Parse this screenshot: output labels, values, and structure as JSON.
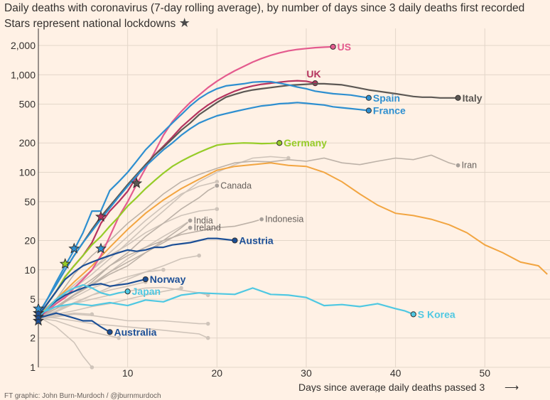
{
  "chart_data": {
    "type": "line",
    "title": "Daily deaths with coronavirus (7-day rolling average), by number of days since 3 daily deaths first recorded",
    "subtitle": "Stars represent national lockdowns",
    "star_glyph": "★",
    "xlabel": "Days since average daily deaths passed 3",
    "x_arrow": "⟶",
    "yscale": "log",
    "ylim": [
      1,
      2600
    ],
    "xlim": [
      0,
      57
    ],
    "yticks": [
      1,
      2,
      5,
      10,
      20,
      50,
      100,
      200,
      500,
      1000,
      2000
    ],
    "ytick_labels": [
      "1",
      "2",
      "5",
      "10",
      "20",
      "50",
      "100",
      "200",
      "500",
      "1,000",
      "2,000"
    ],
    "xticks": [
      10,
      20,
      30,
      40,
      50
    ],
    "xtick_labels": [
      "10",
      "20",
      "30",
      "40",
      "50"
    ],
    "footer": "FT graphic: John Burn-Murdoch / @jburnmurdoch",
    "highlighted": [
      {
        "name": "US",
        "color": "#e45b8e",
        "label_side": "right",
        "x": [
          0,
          1,
          2,
          3,
          4,
          5,
          6,
          7,
          8,
          9,
          10,
          11,
          12,
          13,
          14,
          15,
          16,
          17,
          18,
          19,
          20,
          21,
          22,
          23,
          24,
          25,
          26,
          27,
          28,
          29,
          30,
          31,
          32,
          33
        ],
        "y": [
          3.2,
          3.8,
          4.5,
          5.2,
          6.5,
          8,
          10,
          14,
          22,
          35,
          50,
          75,
          110,
          160,
          240,
          330,
          420,
          520,
          620,
          740,
          860,
          980,
          1100,
          1220,
          1350,
          1470,
          1580,
          1680,
          1760,
          1820,
          1860,
          1900,
          1920,
          1940
        ]
      },
      {
        "name": "UK",
        "color": "#b5345f",
        "label_side": "above",
        "x": [
          0,
          1,
          2,
          3,
          4,
          5,
          6,
          7,
          8,
          9,
          10,
          11,
          12,
          13,
          14,
          15,
          16,
          17,
          18,
          19,
          20,
          21,
          22,
          23,
          24,
          25,
          26,
          27,
          28,
          29,
          30,
          31
        ],
        "y": [
          3.3,
          4.5,
          6,
          8.5,
          11,
          14,
          19,
          30,
          40,
          50,
          64,
          90,
          120,
          150,
          185,
          230,
          290,
          350,
          420,
          490,
          560,
          620,
          680,
          730,
          770,
          800,
          820,
          840,
          860,
          870,
          860,
          820
        ]
      },
      {
        "name": "Italy",
        "color": "#5c5854",
        "label_side": "right",
        "x": [
          0,
          1,
          2,
          3,
          4,
          5,
          6,
          7,
          8,
          9,
          10,
          11,
          12,
          13,
          14,
          15,
          16,
          17,
          18,
          19,
          20,
          21,
          22,
          23,
          24,
          25,
          26,
          27,
          28,
          29,
          30,
          31,
          32,
          33,
          34,
          35,
          36,
          37,
          38,
          39,
          40,
          41,
          42,
          43,
          44,
          45,
          46,
          47
        ],
        "y": [
          3.5,
          5,
          7,
          10,
          14,
          19,
          26,
          35,
          45,
          58,
          75,
          95,
          120,
          150,
          180,
          220,
          270,
          320,
          390,
          450,
          520,
          590,
          630,
          670,
          700,
          720,
          740,
          760,
          780,
          790,
          800,
          810,
          810,
          800,
          790,
          760,
          730,
          700,
          680,
          660,
          640,
          620,
          600,
          590,
          590,
          580,
          580,
          580
        ]
      },
      {
        "name": "Spain",
        "color": "#2e8fd0",
        "label_side": "right",
        "x": [
          0,
          1,
          2,
          3,
          4,
          5,
          6,
          7,
          8,
          9,
          10,
          11,
          12,
          13,
          14,
          15,
          16,
          17,
          18,
          19,
          20,
          21,
          22,
          23,
          24,
          25,
          26,
          27,
          28,
          29,
          30,
          31,
          32,
          33,
          34,
          35,
          36,
          37
        ],
        "y": [
          3.5,
          5,
          7.5,
          11,
          16,
          24,
          40,
          40,
          65,
          80,
          100,
          130,
          170,
          210,
          260,
          320,
          390,
          480,
          570,
          650,
          720,
          770,
          790,
          810,
          840,
          850,
          850,
          820,
          790,
          750,
          720,
          680,
          660,
          640,
          630,
          620,
          600,
          580
        ]
      },
      {
        "name": "France",
        "color": "#2e8fd0",
        "label_side": "right",
        "x": [
          0,
          1,
          2,
          3,
          4,
          5,
          6,
          7,
          8,
          9,
          10,
          11,
          12,
          13,
          14,
          15,
          16,
          17,
          18,
          19,
          20,
          21,
          22,
          23,
          24,
          25,
          26,
          27,
          28,
          29,
          30,
          31,
          32,
          33,
          34,
          35,
          36,
          37
        ],
        "y": [
          3.5,
          5,
          7,
          10,
          14,
          19,
          25,
          33,
          43,
          56,
          72,
          92,
          115,
          140,
          170,
          200,
          240,
          280,
          320,
          350,
          380,
          400,
          420,
          440,
          460,
          480,
          490,
          505,
          510,
          520,
          510,
          500,
          490,
          470,
          460,
          450,
          440,
          430
        ]
      },
      {
        "name": "Germany",
        "color": "#96cc28",
        "label_side": "right",
        "x": [
          0,
          1,
          2,
          3,
          4,
          5,
          6,
          7,
          8,
          9,
          10,
          11,
          12,
          13,
          14,
          15,
          16,
          17,
          18,
          19,
          20,
          21,
          22,
          23,
          24,
          25,
          26,
          27
        ],
        "y": [
          3.3,
          4.5,
          6,
          8.5,
          11,
          14,
          18,
          22,
          28,
          35,
          45,
          55,
          68,
          82,
          98,
          115,
          130,
          145,
          160,
          175,
          190,
          195,
          198,
          200,
          199,
          197,
          198,
          200
        ]
      },
      {
        "name": "Austria",
        "color": "#1c4f96",
        "label_side": "right",
        "x": [
          0,
          1,
          2,
          3,
          4,
          5,
          6,
          7,
          8,
          9,
          10,
          11,
          12,
          13,
          14,
          15,
          16,
          17,
          18,
          19,
          20,
          21,
          22
        ],
        "y": [
          3.4,
          4.5,
          6,
          8,
          9.5,
          11,
          12,
          13,
          14,
          15,
          16,
          15.5,
          16,
          17,
          17,
          18,
          18.5,
          19,
          20,
          21,
          21,
          20.5,
          20
        ]
      },
      {
        "name": "Norway",
        "color": "#1c4f96",
        "label_side": "right",
        "x": [
          0,
          1,
          2,
          3,
          4,
          5,
          6,
          7,
          8,
          9,
          10,
          11,
          12
        ],
        "y": [
          3.2,
          4,
          4.8,
          5.5,
          6,
          6.5,
          7,
          7.2,
          6.8,
          7,
          7.2,
          7.6,
          8
        ]
      },
      {
        "name": "Japan",
        "color": "#4fc8e2",
        "label_side": "right",
        "x": [
          0,
          1,
          2,
          3,
          4,
          5,
          6,
          7,
          8,
          9,
          10
        ],
        "y": [
          3.3,
          4,
          5,
          5.8,
          6.5,
          7,
          6.5,
          5.8,
          5.5,
          5.8,
          6
        ]
      },
      {
        "name": "Australia",
        "color": "#1c4f96",
        "label_side": "right",
        "x": [
          0,
          1,
          2,
          3,
          4,
          5,
          6,
          7,
          8
        ],
        "y": [
          3.2,
          3.4,
          3.6,
          3.4,
          3.2,
          3,
          3,
          2.6,
          2.3
        ]
      },
      {
        "name": "S Korea",
        "color": "#4fc8e2",
        "label_side": "right",
        "x": [
          0,
          2,
          4,
          6,
          8,
          10,
          12,
          14,
          16,
          18,
          20,
          22,
          24,
          26,
          28,
          30,
          32,
          34,
          36,
          38,
          40,
          41,
          42
        ],
        "y": [
          3.5,
          4.2,
          4.5,
          4.3,
          4.6,
          4.3,
          4.9,
          4.7,
          5.5,
          5.8,
          5.7,
          5.6,
          6.5,
          5.6,
          5.5,
          5.2,
          4.3,
          4.4,
          4.2,
          4.5,
          4.0,
          3.8,
          3.5
        ]
      }
    ],
    "grey_labelled": [
      {
        "name": "Iran",
        "x": [
          0,
          2,
          4,
          6,
          8,
          10,
          12,
          14,
          16,
          18,
          20,
          22,
          24,
          26,
          28,
          30,
          32,
          34,
          36,
          38,
          40,
          42,
          44,
          46,
          47
        ],
        "y": [
          3.5,
          5,
          9,
          14,
          20,
          30,
          42,
          60,
          80,
          95,
          110,
          125,
          130,
          128,
          135,
          130,
          140,
          125,
          120,
          130,
          140,
          135,
          150,
          125,
          118
        ]
      },
      {
        "name": "Canada",
        "x": [
          0,
          2,
          4,
          6,
          8,
          10,
          12,
          14,
          16,
          18,
          19,
          20
        ],
        "y": [
          3.3,
          4,
          5.5,
          7.5,
          11,
          15,
          22,
          30,
          42,
          55,
          65,
          73
        ]
      },
      {
        "name": "India",
        "x": [
          0,
          2,
          4,
          6,
          8,
          10,
          12,
          14,
          16,
          17
        ],
        "y": [
          3.2,
          4,
          5.5,
          7,
          9,
          11,
          15,
          20,
          27,
          32
        ]
      },
      {
        "name": "Ireland",
        "x": [
          0,
          2,
          4,
          6,
          8,
          10,
          12,
          14,
          16,
          17
        ],
        "y": [
          3.3,
          4.2,
          5.5,
          7,
          9.5,
          12,
          15,
          19,
          24,
          27
        ]
      },
      {
        "name": "Indonesia",
        "x": [
          0,
          2,
          4,
          6,
          8,
          10,
          12,
          14,
          16,
          18,
          20,
          22,
          24,
          25
        ],
        "y": [
          3.3,
          4.5,
          6,
          8,
          11,
          14,
          17,
          20,
          23,
          25,
          27,
          28,
          31,
          33
        ]
      }
    ],
    "grey_unlabelled": [
      {
        "x": [
          0,
          2,
          4,
          6,
          8,
          10,
          12,
          14,
          16,
          18,
          20,
          22,
          24,
          26,
          28
        ],
        "y": [
          3.2,
          4.5,
          6.5,
          9,
          13,
          19,
          28,
          40,
          58,
          80,
          100,
          120,
          140,
          145,
          140
        ]
      },
      {
        "x": [
          0,
          2,
          4,
          6,
          8,
          10,
          12,
          14,
          16,
          18,
          20
        ],
        "y": [
          3.4,
          4.6,
          7,
          10,
          15,
          22,
          32,
          45,
          60,
          72,
          80
        ]
      },
      {
        "x": [
          0,
          2,
          4,
          6,
          8,
          10,
          12,
          14,
          16,
          17
        ],
        "y": [
          3.3,
          4.2,
          5.6,
          7.2,
          9.5,
          13,
          17,
          22,
          28,
          32
        ]
      },
      {
        "x": [
          0,
          2,
          4,
          6,
          8,
          10,
          12,
          14,
          16,
          18
        ],
        "y": [
          3.2,
          3.8,
          4.6,
          5.5,
          6.6,
          8,
          9.5,
          11,
          13,
          14
        ]
      },
      {
        "x": [
          0,
          2,
          4,
          6,
          8,
          10,
          12,
          14,
          16
        ],
        "y": [
          3.2,
          3.5,
          3.8,
          4.2,
          4.5,
          5,
          5.5,
          6,
          6.5
        ]
      },
      {
        "x": [
          0,
          2,
          4,
          6,
          8,
          10,
          12,
          14,
          16,
          18,
          19
        ],
        "y": [
          3.3,
          4,
          4.5,
          5,
          5.5,
          6,
          6.5,
          6.6,
          6.2,
          5.8,
          5.5
        ]
      },
      {
        "x": [
          0,
          2,
          4,
          6,
          8,
          10,
          12,
          14,
          16,
          18,
          19
        ],
        "y": [
          3.1,
          3.3,
          3.5,
          3.4,
          3.2,
          3,
          3,
          3,
          2.9,
          2.8,
          2.8
        ]
      },
      {
        "x": [
          0,
          2,
          4,
          6,
          8,
          10,
          12,
          14,
          16,
          18,
          19
        ],
        "y": [
          3.3,
          3.2,
          3,
          2.8,
          2.7,
          2.6,
          2.5,
          2.4,
          2.3,
          2.2,
          2
        ]
      },
      {
        "x": [
          0,
          2,
          4,
          6,
          8,
          9
        ],
        "y": [
          3.2,
          3,
          2.6,
          2.3,
          2.1,
          2
        ]
      },
      {
        "x": [
          0,
          2,
          4,
          5,
          6
        ],
        "y": [
          3.3,
          2.6,
          1.8,
          1.3,
          1
        ]
      },
      {
        "x": [
          0,
          2,
          4,
          6
        ],
        "y": [
          3.2,
          3.4,
          3.6,
          3.5
        ]
      },
      {
        "x": [
          0,
          2,
          4,
          6,
          8,
          10,
          12,
          14
        ],
        "y": [
          3.3,
          4.2,
          5.2,
          6.5,
          7.5,
          8.5,
          9.5,
          10
        ]
      },
      {
        "x": [
          0,
          2,
          4,
          6,
          8,
          10,
          12
        ],
        "y": [
          3.2,
          3.7,
          4.5,
          5.5,
          6.2,
          6.8,
          7.5
        ]
      },
      {
        "x": [
          0,
          2,
          4,
          6,
          8,
          10,
          12,
          14,
          16,
          18,
          20
        ],
        "y": [
          3.5,
          5,
          7,
          10,
          14,
          18,
          24,
          30,
          36,
          40,
          42
        ]
      }
    ],
    "orange": {
      "color": "#f2a541",
      "x": [
        0,
        2,
        4,
        6,
        8,
        10,
        12,
        14,
        16,
        18,
        20,
        22,
        24,
        26,
        28,
        30,
        32,
        34,
        36,
        38,
        40,
        42,
        44,
        46,
        48,
        50,
        52,
        54,
        56,
        57
      ],
      "y": [
        3.3,
        5,
        7.5,
        11,
        17,
        26,
        38,
        52,
        68,
        85,
        105,
        115,
        120,
        125,
        118,
        115,
        100,
        80,
        60,
        46,
        38,
        36,
        33,
        29,
        24,
        18,
        15,
        12,
        11,
        9
      ]
    },
    "lockdowns": [
      {
        "x": 0,
        "y": 3.0
      },
      {
        "x": 0,
        "y": 3.3
      },
      {
        "x": 0,
        "y": 3.6
      },
      {
        "x": 0,
        "y": 4.0
      },
      {
        "x": 3,
        "y": 11.5
      },
      {
        "x": 4,
        "y": 16.5
      },
      {
        "x": 7,
        "y": 16.5
      },
      {
        "x": 7,
        "y": 35
      },
      {
        "x": 11,
        "y": 77
      }
    ]
  }
}
